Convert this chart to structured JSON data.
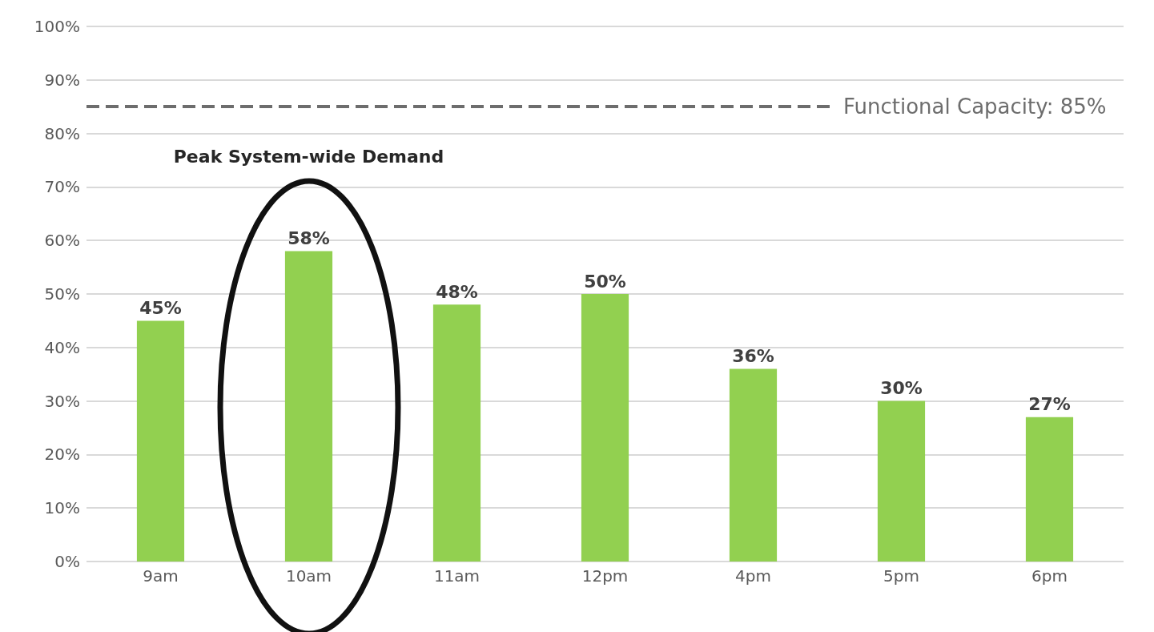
{
  "chart_data": {
    "type": "bar",
    "categories": [
      "9am",
      "10am",
      "11am",
      "12pm",
      "4pm",
      "5pm",
      "6pm"
    ],
    "values": [
      45,
      58,
      48,
      50,
      36,
      30,
      27
    ],
    "value_labels": [
      "45%",
      "58%",
      "48%",
      "50%",
      "36%",
      "30%",
      "27%"
    ],
    "color": "#92d050",
    "ylim": [
      0,
      100
    ],
    "yticks": [
      {
        "value": 0,
        "label": "0%"
      },
      {
        "value": 10,
        "label": "10%"
      },
      {
        "value": 20,
        "label": "20%"
      },
      {
        "value": 30,
        "label": "30%"
      },
      {
        "value": 40,
        "label": "40%"
      },
      {
        "value": 50,
        "label": "50%"
      },
      {
        "value": 60,
        "label": "60%"
      },
      {
        "value": 70,
        "label": "70%"
      },
      {
        "value": 80,
        "label": "80%"
      },
      {
        "value": 90,
        "label": "90%"
      },
      {
        "value": 100,
        "label": "100%"
      }
    ],
    "grid": "y",
    "ref_lines": [
      {
        "axis": "y",
        "value": 85,
        "label": "Functional Capacity: 85%",
        "color": "#6d6d6d",
        "line_style": "dashed"
      }
    ],
    "annotations": [
      "Peak System-wide Demand"
    ]
  }
}
